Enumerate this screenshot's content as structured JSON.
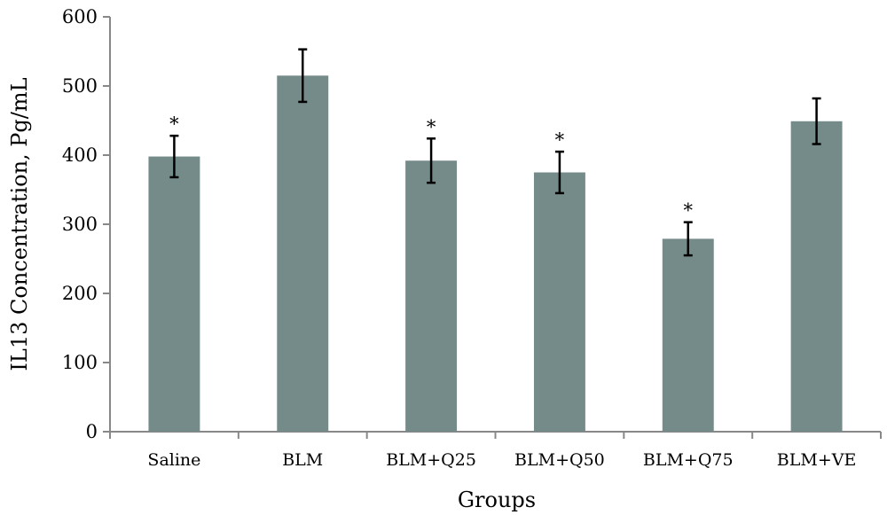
{
  "chart_data": {
    "type": "bar",
    "categories": [
      "Saline",
      "BLM",
      "BLM+Q25",
      "BLM+Q50",
      "BLM+Q75",
      "BLM+VE"
    ],
    "values": [
      398,
      515,
      392,
      375,
      279,
      449
    ],
    "error": [
      30,
      38,
      32,
      30,
      24,
      33
    ],
    "annotations": [
      "*",
      "",
      "*",
      "*",
      "*",
      ""
    ],
    "xlabel": "Groups",
    "ylabel": "IL13 Concentration, Pg/mL",
    "ylim": [
      0,
      600
    ],
    "yticks": [
      0,
      100,
      200,
      300,
      400,
      500,
      600
    ],
    "bar_color": "#748b8a",
    "grid": false,
    "legend": "none"
  }
}
